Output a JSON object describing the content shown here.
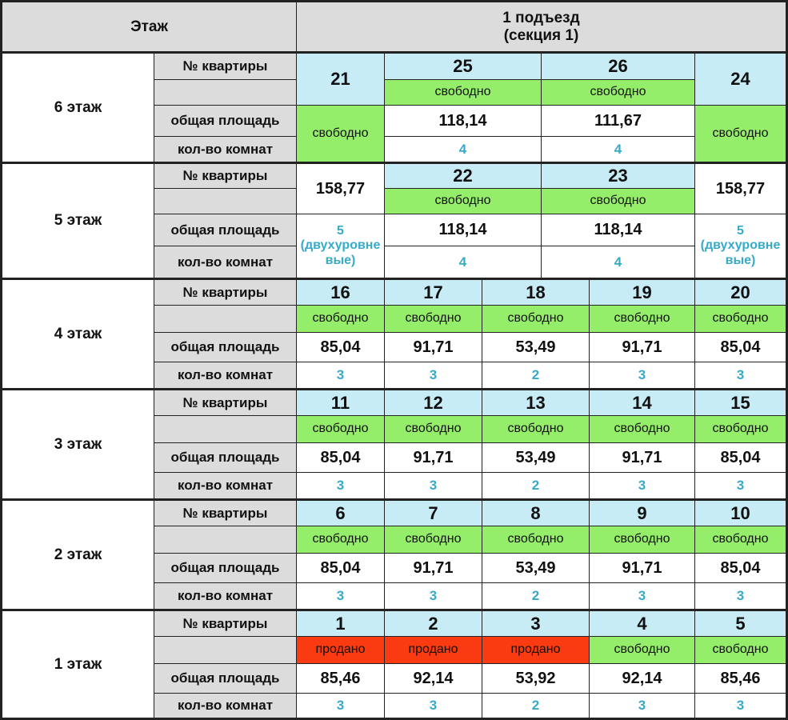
{
  "header": {
    "floor_col": "Этаж",
    "entrance": "1 подъезд",
    "section": "(секция 1)"
  },
  "labels": {
    "apt_no": "№ квартиры",
    "area": "общая площадь",
    "rooms": "кол-во комнат"
  },
  "colors": {
    "header_gray": "#dcdcdc",
    "apt_number_blue": "#c8ecf6",
    "free_green": "#95ee6a",
    "sold_red": "#fa3a10",
    "rooms_text_blue": "#38aac8"
  },
  "floors": [
    {
      "name": "6 этаж",
      "apartments": [
        {
          "number": "21",
          "status": "свободно"
        },
        {
          "number": "25",
          "status": "свободно",
          "area": "118,14",
          "rooms": "4"
        },
        {
          "number": "26",
          "status": "свободно",
          "area": "111,67",
          "rooms": "4"
        },
        {
          "number": "24",
          "status": "свободно"
        }
      ]
    },
    {
      "name": "5 этаж",
      "apartments": [
        {
          "area": "158,77",
          "rooms": "5",
          "rooms_note": "(двухуровневые)"
        },
        {
          "number": "22",
          "status": "свободно",
          "area": "118,14",
          "rooms": "4"
        },
        {
          "number": "23",
          "status": "свободно",
          "area": "118,14",
          "rooms": "4"
        },
        {
          "area": "158,77",
          "rooms": "5",
          "rooms_note": "(двухуровневые)"
        }
      ]
    },
    {
      "name": "4 этаж",
      "apartments": [
        {
          "number": "16",
          "status": "свободно",
          "area": "85,04",
          "rooms": "3"
        },
        {
          "number": "17",
          "status": "свободно",
          "area": "91,71",
          "rooms": "3"
        },
        {
          "number": "18",
          "status": "свободно",
          "area": "53,49",
          "rooms": "2"
        },
        {
          "number": "19",
          "status": "свободно",
          "area": "91,71",
          "rooms": "3"
        },
        {
          "number": "20",
          "status": "свободно",
          "area": "85,04",
          "rooms": "3"
        }
      ]
    },
    {
      "name": "3 этаж",
      "apartments": [
        {
          "number": "11",
          "status": "свободно",
          "area": "85,04",
          "rooms": "3"
        },
        {
          "number": "12",
          "status": "свободно",
          "area": "91,71",
          "rooms": "3"
        },
        {
          "number": "13",
          "status": "свободно",
          "area": "53,49",
          "rooms": "2"
        },
        {
          "number": "14",
          "status": "свободно",
          "area": "91,71",
          "rooms": "3"
        },
        {
          "number": "15",
          "status": "свободно",
          "area": "85,04",
          "rooms": "3"
        }
      ]
    },
    {
      "name": "2 этаж",
      "apartments": [
        {
          "number": "6",
          "status": "свободно",
          "area": "85,04",
          "rooms": "3"
        },
        {
          "number": "7",
          "status": "свободно",
          "area": "91,71",
          "rooms": "3"
        },
        {
          "number": "8",
          "status": "свободно",
          "area": "53,49",
          "rooms": "2"
        },
        {
          "number": "9",
          "status": "свободно",
          "area": "91,71",
          "rooms": "3"
        },
        {
          "number": "10",
          "status": "свободно",
          "area": "85,04",
          "rooms": "3"
        }
      ]
    },
    {
      "name": "1 этаж",
      "apartments": [
        {
          "number": "1",
          "status": "продано",
          "area": "85,46",
          "rooms": "3"
        },
        {
          "number": "2",
          "status": "продано",
          "area": "92,14",
          "rooms": "3"
        },
        {
          "number": "3",
          "status": "продано",
          "area": "53,92",
          "rooms": "2"
        },
        {
          "number": "4",
          "status": "свободно",
          "area": "92,14",
          "rooms": "3"
        },
        {
          "number": "5",
          "status": "свободно",
          "area": "85,46",
          "rooms": "3"
        }
      ]
    }
  ]
}
